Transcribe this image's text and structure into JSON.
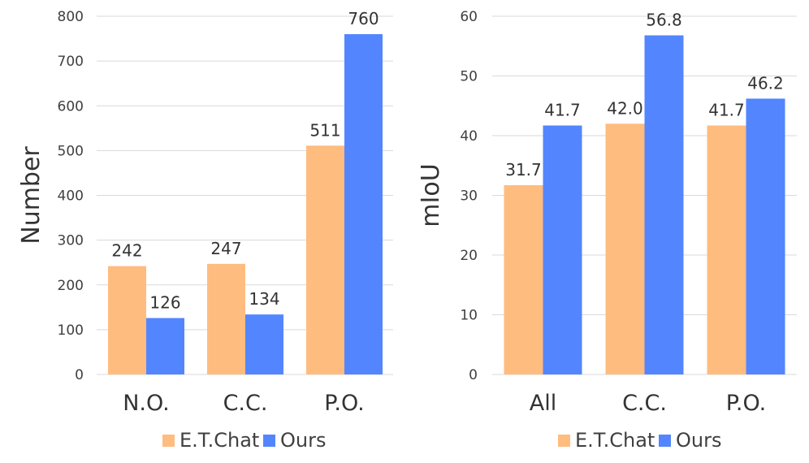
{
  "colors": {
    "et_chat": "#FFBC7F",
    "ours": "#5385FF"
  },
  "chart_data": [
    {
      "type": "bar",
      "title": "",
      "xlabel": "",
      "ylabel": "Number",
      "categories": [
        "N.O.",
        "C.C.",
        "P.O."
      ],
      "series": [
        {
          "name": "E.T.Chat",
          "values": [
            242,
            247,
            511
          ],
          "labels": [
            "242",
            "247",
            "511"
          ]
        },
        {
          "name": "Ours",
          "values": [
            126,
            134,
            760
          ],
          "labels": [
            "126",
            "134",
            "760"
          ]
        }
      ],
      "ylim": [
        0,
        800
      ],
      "yticks": [
        0,
        100,
        200,
        300,
        400,
        500,
        600,
        700,
        800
      ],
      "ytick_labels": [
        "0",
        "100",
        "200",
        "300",
        "400",
        "500",
        "600",
        "700",
        "800"
      ],
      "grid": true,
      "legend": "bottom"
    },
    {
      "type": "bar",
      "title": "",
      "xlabel": "",
      "ylabel": "mIoU",
      "categories": [
        "All",
        "C.C.",
        "P.O."
      ],
      "series": [
        {
          "name": "E.T.Chat",
          "values": [
            31.7,
            42.0,
            41.7
          ],
          "labels": [
            "31.7",
            "42.0",
            "41.7"
          ]
        },
        {
          "name": "Ours",
          "values": [
            41.7,
            56.8,
            46.2
          ],
          "labels": [
            "41.7",
            "56.8",
            "46.2"
          ]
        }
      ],
      "ylim": [
        0,
        60
      ],
      "yticks": [
        0,
        10,
        20,
        30,
        40,
        50,
        60
      ],
      "ytick_labels": [
        "0",
        "10",
        "20",
        "30",
        "40",
        "50",
        "60"
      ],
      "grid": true,
      "legend": "bottom"
    }
  ]
}
